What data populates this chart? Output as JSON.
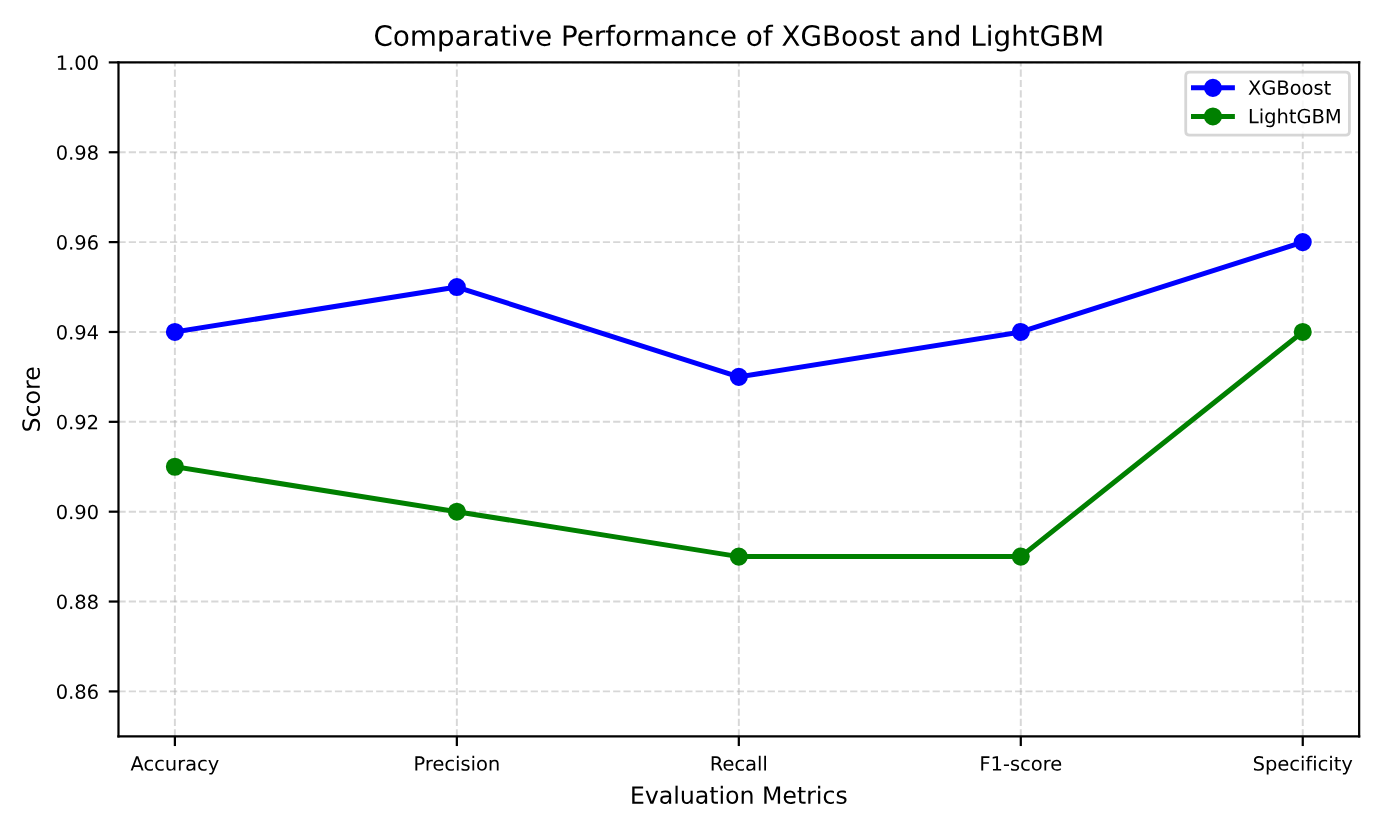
{
  "chart_data": {
    "type": "line",
    "title": "Comparative Performance of XGBoost and LightGBM",
    "xlabel": "Evaluation Metrics",
    "ylabel": "Score",
    "categories": [
      "Accuracy",
      "Precision",
      "Recall",
      "F1-score",
      "Specificity"
    ],
    "series": [
      {
        "name": "XGBoost",
        "color": "#0000ff",
        "values": [
          0.94,
          0.95,
          0.93,
          0.94,
          0.96
        ]
      },
      {
        "name": "LightGBM",
        "color": "#008000",
        "values": [
          0.91,
          0.9,
          0.89,
          0.89,
          0.94
        ]
      }
    ],
    "ylim": [
      0.85,
      1.0
    ],
    "yticks": [
      0.86,
      0.88,
      {
        "value": 0.9,
        "label": "0.90"
      },
      0.92,
      0.94,
      0.96,
      0.98,
      {
        "value": 1.0,
        "label": "1.00"
      }
    ],
    "grid": true,
    "legend": "top right",
    "marker": "circle",
    "line_style": "solid"
  }
}
